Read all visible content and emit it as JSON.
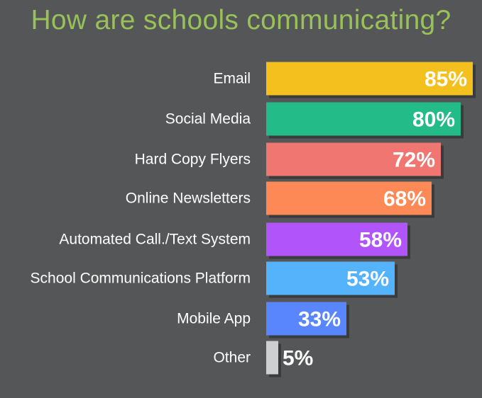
{
  "chart_data": {
    "type": "bar",
    "orientation": "horizontal",
    "title": "How are schools communicating?",
    "categories": [
      "Email",
      "Social Media",
      "Hard Copy Flyers",
      "Online Newsletters",
      "Automated Call./Text System",
      "School Communications Platform",
      "Mobile App",
      "Other"
    ],
    "values": [
      85,
      80,
      72,
      68,
      58,
      53,
      33,
      5
    ],
    "value_labels": [
      "85%",
      "80%",
      "72%",
      "68%",
      "58%",
      "53%",
      "33%",
      "5%"
    ],
    "colors": [
      "#f4c01e",
      "#23bc88",
      "#f07771",
      "#fd8a56",
      "#b155fb",
      "#55b3fb",
      "#5a86fd",
      "#cfcfcf"
    ],
    "xlim": [
      0,
      85
    ],
    "grid": false,
    "legend": "none",
    "background": "#555657",
    "title_color": "#98c15a"
  }
}
